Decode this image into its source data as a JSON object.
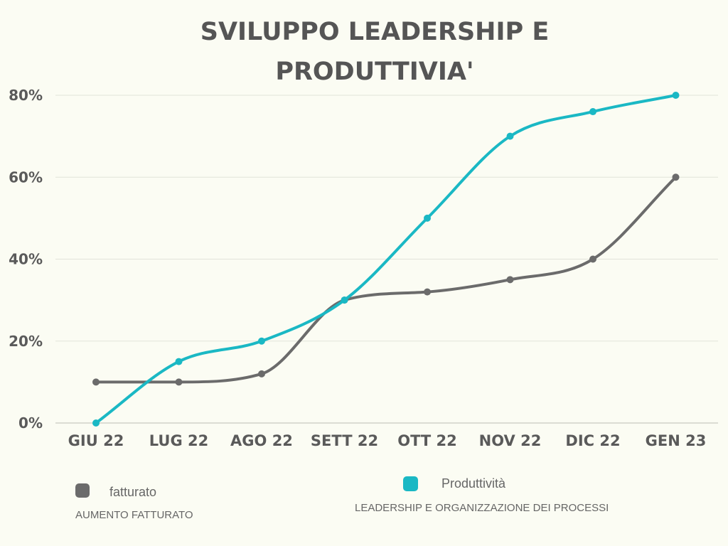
{
  "chart_data": {
    "type": "line",
    "title_lines": [
      "SVILUPPO LEADERSHIP E",
      "PRODUTTIVIA'"
    ],
    "categories": [
      "GIU 22",
      "LUG 22",
      "AGO 22",
      "SETT 22",
      "OTT 22",
      "NOV 22",
      "DIC 22",
      "GEN 23"
    ],
    "ylim": [
      0,
      80
    ],
    "yticks": [
      0,
      20,
      40,
      60,
      80
    ],
    "ytick_labels": [
      "0%",
      "20%",
      "40%",
      "60%",
      "80%"
    ],
    "grid": true,
    "series": [
      {
        "key": "fatturato",
        "name": "fatturato",
        "description": "AUMENTO FATTURATO",
        "color": "#6b6b6b",
        "values": [
          10,
          10,
          12,
          30,
          32,
          35,
          40,
          60
        ]
      },
      {
        "key": "produttivita",
        "name": "Produttività",
        "description": "LEADERSHIP  E ORGANIZZAZIONE DEI PROCESSI",
        "color": "#1ab8c4",
        "values": [
          0,
          15,
          20,
          30,
          50,
          70,
          76,
          80
        ]
      }
    ]
  }
}
